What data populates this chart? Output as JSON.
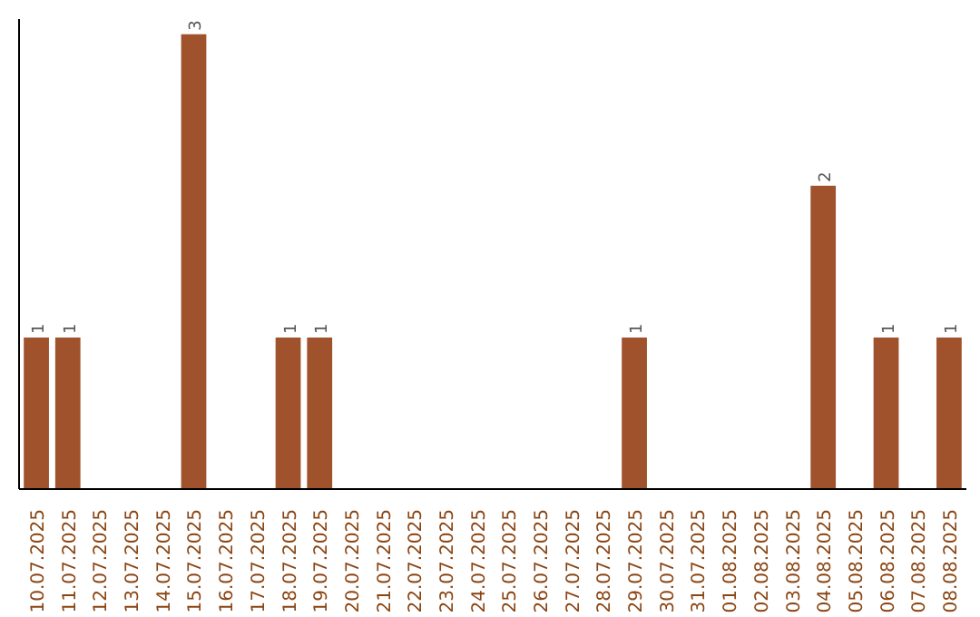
{
  "chart_data": {
    "type": "bar",
    "categories": [
      "10.07.2025",
      "11.07.2025",
      "12.07.2025",
      "13.07.2025",
      "14.07.2025",
      "15.07.2025",
      "16.07.2025",
      "17.07.2025",
      "18.07.2025",
      "19.07.2025",
      "20.07.2025",
      "21.07.2025",
      "22.07.2025",
      "23.07.2025",
      "24.07.2025",
      "25.07.2025",
      "26.07.2025",
      "27.07.2025",
      "28.07.2025",
      "29.07.2025",
      "30.07.2025",
      "31.07.2025",
      "01.08.2025",
      "02.08.2025",
      "03.08.2025",
      "04.08.2025",
      "05.08.2025",
      "06.08.2025",
      "07.08.2025",
      "08.08.2025"
    ],
    "values": [
      1,
      1,
      0,
      0,
      0,
      3,
      0,
      0,
      1,
      1,
      0,
      0,
      0,
      0,
      0,
      0,
      0,
      0,
      0,
      1,
      0,
      0,
      0,
      0,
      0,
      2,
      0,
      1,
      0,
      1
    ],
    "value_labels": [
      "1",
      "1",
      null,
      null,
      null,
      "3",
      null,
      null,
      "1",
      "1",
      null,
      null,
      null,
      null,
      null,
      null,
      null,
      null,
      null,
      "1",
      null,
      null,
      null,
      null,
      null,
      "2",
      null,
      "1",
      null,
      "1"
    ],
    "color": "#a0522d",
    "ylim": [
      0,
      3.1
    ],
    "tick_labels": "x",
    "grid": false
  }
}
